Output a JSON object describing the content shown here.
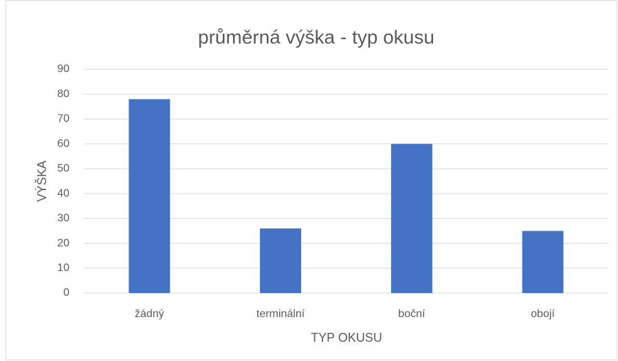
{
  "chart_data": {
    "type": "bar",
    "title": "průměrná výška - typ okusu",
    "x_label": "TYP OKUSU",
    "y_label": "VÝŠKA",
    "categories": [
      "žádný",
      "terminální",
      "boční",
      "obojí"
    ],
    "values": [
      78,
      26,
      60,
      25
    ],
    "color": "#4472c4",
    "ylim": [
      0,
      90
    ],
    "yticks": [
      0,
      10,
      20,
      30,
      40,
      50,
      60,
      70,
      80,
      90
    ],
    "grid": true
  }
}
